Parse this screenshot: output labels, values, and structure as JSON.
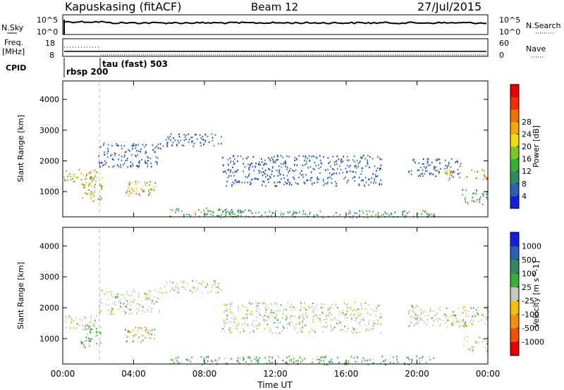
{
  "header": {
    "station": "Kapuskasing (fitACF)",
    "beam": "Beam 12",
    "date": "27/Jul/2015"
  },
  "noise_panel": {
    "left_label": "N.Sky",
    "right_label": "N.Search",
    "left_ticks": [
      "10^5",
      "10^0"
    ],
    "right_ticks": [
      "10^5",
      "10^0"
    ]
  },
  "freq_panel": {
    "left_label": "Freq.",
    "left_unit": "[MHz]",
    "right_label": "Nave",
    "left_ticks": [
      "18",
      "8"
    ],
    "right_ticks": [
      "60",
      "0"
    ]
  },
  "cpid_panel": {
    "label": "CPID",
    "entries": [
      "rbsp 200",
      "tau (fast) 503"
    ]
  },
  "x_axis": {
    "label": "Time UT",
    "ticks": [
      "00:00",
      "04:00",
      "08:00",
      "12:00",
      "16:00",
      "20:00",
      "00:00"
    ]
  },
  "chart_data": [
    {
      "type": "heatmap",
      "name": "power",
      "ylabel": "Slant Range [km]",
      "yticks": [
        "1000",
        "2000",
        "3000",
        "4000"
      ],
      "xlim_hours": [
        0,
        24
      ],
      "ylim_km": [
        180,
        4600
      ],
      "colorbar": {
        "label": "Power [dB]",
        "ticks": [
          "4",
          "8",
          "12",
          "16",
          "20",
          "24",
          "28"
        ],
        "colors": [
          "#1020e0",
          "#2f5fb4",
          "#2f8a62",
          "#38b038",
          "#78c81e",
          "#f0dc00",
          "#f5a800",
          "#f07000",
          "#f03000",
          "#e80000"
        ]
      },
      "echo_regions": [
        {
          "t_start": 0.0,
          "t_end": 1.9,
          "r_start": 1300,
          "r_end": 1750,
          "level": "high"
        },
        {
          "t_start": 1.0,
          "t_end": 2.2,
          "r_start": 700,
          "r_end": 1500,
          "level": "high"
        },
        {
          "t_start": 2.0,
          "t_end": 5.5,
          "r_start": 1800,
          "r_end": 2600,
          "level": "low"
        },
        {
          "t_start": 3.5,
          "t_end": 5.2,
          "r_start": 900,
          "r_end": 1400,
          "level": "high"
        },
        {
          "t_start": 5.5,
          "t_end": 9.0,
          "r_start": 2500,
          "r_end": 2900,
          "level": "low"
        },
        {
          "t_start": 6.0,
          "t_end": 10.5,
          "r_start": 200,
          "r_end": 500,
          "level": "mid"
        },
        {
          "t_start": 8.0,
          "t_end": 21.0,
          "r_start": 180,
          "r_end": 400,
          "level": "mid"
        },
        {
          "t_start": 9.0,
          "t_end": 18.0,
          "r_start": 1200,
          "r_end": 2200,
          "level": "low"
        },
        {
          "t_start": 19.5,
          "t_end": 22.5,
          "r_start": 1500,
          "r_end": 2100,
          "level": "low"
        },
        {
          "t_start": 21.5,
          "t_end": 24.0,
          "r_start": 1400,
          "r_end": 1750,
          "level": "high"
        },
        {
          "t_start": 22.5,
          "t_end": 24.0,
          "r_start": 600,
          "r_end": 1100,
          "level": "mid"
        }
      ]
    },
    {
      "type": "heatmap",
      "name": "velocity",
      "ylabel": "Slant Range [km]",
      "yticks": [
        "1000",
        "2000",
        "3000",
        "4000"
      ],
      "xlim_hours": [
        0,
        24
      ],
      "ylim_km": [
        180,
        4600
      ],
      "colorbar": {
        "label": "Velocity [m s^-1]",
        "ticks": [
          "-1000",
          "-500",
          "-100",
          "-25",
          "25",
          "100",
          "500",
          "1000"
        ],
        "colors": [
          "#e80000",
          "#f05000",
          "#f59000",
          "#f5c000",
          "#c8c8c0",
          "#38b038",
          "#2f8a62",
          "#2f5fb4",
          "#1020e0"
        ]
      },
      "echo_regions": [
        {
          "t_start": 0.0,
          "t_end": 1.9,
          "r_start": 1300,
          "r_end": 1750,
          "level": "gray"
        },
        {
          "t_start": 1.0,
          "t_end": 2.2,
          "r_start": 700,
          "r_end": 1500,
          "level": "green"
        },
        {
          "t_start": 2.0,
          "t_end": 5.5,
          "r_start": 1800,
          "r_end": 2600,
          "level": "gray"
        },
        {
          "t_start": 3.5,
          "t_end": 5.2,
          "r_start": 900,
          "r_end": 1400,
          "level": "mixed"
        },
        {
          "t_start": 5.5,
          "t_end": 9.0,
          "r_start": 2500,
          "r_end": 2900,
          "level": "gray"
        },
        {
          "t_start": 6.0,
          "t_end": 21.0,
          "r_start": 180,
          "r_end": 450,
          "level": "green"
        },
        {
          "t_start": 9.0,
          "t_end": 18.0,
          "r_start": 1200,
          "r_end": 2200,
          "level": "gray"
        },
        {
          "t_start": 19.5,
          "t_end": 24.0,
          "r_start": 1400,
          "r_end": 2100,
          "level": "gray"
        },
        {
          "t_start": 22.5,
          "t_end": 24.0,
          "r_start": 600,
          "r_end": 1100,
          "level": "gray"
        }
      ]
    }
  ]
}
